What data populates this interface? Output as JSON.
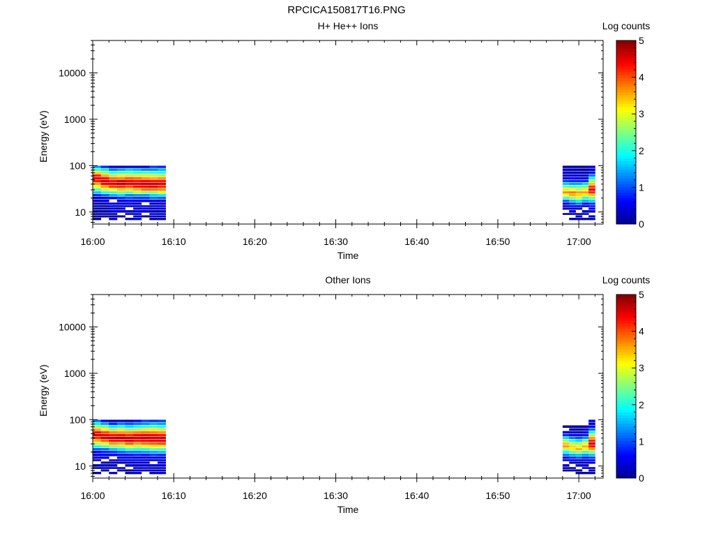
{
  "figure_title": "RPCICA150817T16.PNG",
  "colors": {
    "background": "#ffffff",
    "axis": "#000000",
    "colormap": [
      "#00008f",
      "#0000ff",
      "#0080ff",
      "#00ffff",
      "#80ff80",
      "#ffff00",
      "#ff8000",
      "#ff0000",
      "#800000"
    ]
  },
  "chart_data": [
    {
      "type": "heatmap",
      "title": "H+ He++ Ions",
      "xlabel": "Time",
      "ylabel": "Energy (eV)",
      "x_axis": {
        "type": "time",
        "range": [
          "16:00",
          "17:03"
        ],
        "tick_labels": [
          "16:00",
          "16:10",
          "16:20",
          "16:30",
          "16:40",
          "16:50",
          "17:00"
        ]
      },
      "y_axis": {
        "scale": "log",
        "range": [
          5.5,
          50000
        ],
        "tick_labels": [
          "10",
          "100",
          "1000",
          "10000"
        ],
        "tick_values": [
          10,
          100,
          1000,
          10000
        ]
      },
      "colorbar": {
        "label": "Log counts",
        "range": [
          0,
          5
        ],
        "tick_labels": [
          "0",
          "1",
          "2",
          "3",
          "4",
          "5"
        ]
      },
      "energy_bins": [
        7,
        8,
        9,
        10,
        12,
        13,
        15,
        17,
        20,
        23,
        26,
        30,
        35,
        40,
        46,
        53,
        61,
        70,
        81,
        93
      ],
      "segments": [
        {
          "time_start": "16:00",
          "time_end": "16:09",
          "columns": [
            [
              0,
              0.2,
              0.1,
              0.1,
              0.2,
              0.2,
              0.2,
              0.3,
              0.4,
              0.8,
              1.6,
              2.3,
              3.1,
              3.6,
              4.3,
              4.5,
              4.2,
              3.3,
              2.1,
              1.4
            ],
            [
              null,
              0.1,
              0.2,
              0.1,
              0.2,
              0.1,
              0.3,
              0.4,
              0.5,
              1.1,
              2,
              2.9,
              3.6,
              4.4,
              4.6,
              4.3,
              3.5,
              2.6,
              1.8,
              0.8
            ],
            [
              0.3,
              0.1,
              0.2,
              0.3,
              0.4,
              0.4,
              0.5,
              null,
              0.6,
              1.5,
              2.2,
              3.1,
              4.1,
              4.5,
              4.3,
              3.8,
              2.7,
              2.1,
              1.2,
              0.4
            ],
            [
              null,
              0.2,
              null,
              0.3,
              0.3,
              0.4,
              0.4,
              0.5,
              0.8,
              1.7,
              2.5,
              3.4,
              4.2,
              4.7,
              4.6,
              3.7,
              3,
              2.2,
              1.4,
              0.3
            ],
            [
              0.2,
              null,
              0.2,
              0.3,
              null,
              0.3,
              0.5,
              0.6,
              1,
              1.3,
              2.3,
              3.3,
              4,
              4.5,
              4.4,
              3.9,
              2.8,
              2.3,
              1.6,
              0.5
            ],
            [
              0.4,
              0.3,
              0.3,
              0.4,
              0.3,
              0.3,
              0.4,
              0.5,
              0.9,
              1.4,
              2.8,
              3.5,
              4.3,
              4.5,
              4.3,
              3.8,
              2.9,
              2.1,
              1.5,
              0.5
            ],
            [
              null,
              0.2,
              null,
              0.3,
              0.5,
              0.5,
              null,
              0.6,
              0.9,
              1.4,
              2.6,
              3.8,
              4.4,
              4.6,
              4.4,
              3.6,
              2.9,
              2.2,
              1.3,
              0.3
            ],
            [
              0.1,
              0.3,
              0.4,
              0.2,
              0.3,
              0.4,
              0.3,
              0.3,
              1.2,
              1.7,
              2.6,
              3.8,
              4.5,
              4.6,
              4.3,
              3.5,
              2.8,
              2.1,
              1.3,
              0.9
            ],
            [
              0.3,
              0.2,
              0.3,
              0.2,
              0.4,
              0.4,
              0.4,
              0.3,
              1.1,
              1.8,
              3,
              3.7,
              4.2,
              4.5,
              4.3,
              3.6,
              2.7,
              2,
              1.5,
              0.8
            ]
          ]
        },
        {
          "time_start": "16:58",
          "time_end": "17:02",
          "columns": [
            [
              null,
              null,
              0.1,
              null,
              0.3,
              0.2,
              0.5,
              1.1,
              2.2,
              3.1,
              3.7,
              3.2,
              2.4,
              1.6,
              0.9,
              0.4,
              0.3,
              0.2,
              0.3,
              0.1
            ],
            [
              0.1,
              null,
              0.2,
              0.3,
              0.4,
              0.6,
              0.9,
              1.6,
              2.6,
              3.5,
              3.8,
              3.1,
              2.2,
              1.4,
              0.8,
              0.6,
              0.3,
              0.2,
              0.2,
              0.1
            ],
            [
              0.3,
              0.2,
              0.3,
              null,
              0.4,
              0.5,
              1.2,
              1.8,
              2.9,
              3.3,
              3.6,
              2.8,
              2.3,
              1.4,
              0.8,
              0.5,
              0.3,
              0.3,
              0.2,
              0.1
            ],
            [
              0.2,
              null,
              0.3,
              0.2,
              null,
              0.2,
              0.6,
              1.5,
              2.1,
              3.2,
              3.6,
              3,
              2.4,
              1.7,
              0.8,
              0.4,
              0.3,
              0.2,
              0.1,
              0.1
            ],
            [
              0.3,
              0.3,
              null,
              0.4,
              0.5,
              0.7,
              0.8,
              1.7,
              2.5,
              3.4,
              4.2,
              4.5,
              4.1,
              3.4,
              2.6,
              1.8,
              1.2,
              0.6,
              0.3,
              0.4
            ]
          ]
        }
      ]
    },
    {
      "type": "heatmap",
      "title": "Other Ions",
      "xlabel": "Time",
      "ylabel": "Energy (eV)",
      "x_axis": {
        "type": "time",
        "range": [
          "16:00",
          "17:03"
        ],
        "tick_labels": [
          "16:00",
          "16:10",
          "16:20",
          "16:30",
          "16:40",
          "16:50",
          "17:00"
        ]
      },
      "y_axis": {
        "scale": "log",
        "range": [
          5.5,
          50000
        ],
        "tick_labels": [
          "10",
          "100",
          "1000",
          "10000"
        ],
        "tick_values": [
          10,
          100,
          1000,
          10000
        ]
      },
      "colorbar": {
        "label": "Log counts",
        "range": [
          0,
          5
        ],
        "tick_labels": [
          "0",
          "1",
          "2",
          "3",
          "4",
          "5"
        ]
      },
      "energy_bins": [
        7,
        8,
        9,
        10,
        12,
        13,
        15,
        17,
        20,
        23,
        26,
        30,
        35,
        40,
        46,
        53,
        61,
        70,
        81,
        93
      ],
      "segments": [
        {
          "time_start": "16:00",
          "time_end": "16:09",
          "columns": [
            [
              0.1,
              null,
              0.3,
              0.2,
              null,
              0.3,
              0.4,
              0.4,
              0.6,
              1.1,
              1.9,
              2.8,
              3.5,
              4.2,
              4.6,
              4.3,
              3.5,
              2.6,
              1.8,
              1.2
            ],
            [
              null,
              0.2,
              0.1,
              0.3,
              0.2,
              null,
              0.3,
              0.5,
              0.8,
              1.2,
              2.2,
              3.2,
              3.9,
              4.6,
              4.5,
              4,
              3.1,
              2.4,
              1.4,
              0.6
            ],
            [
              0.3,
              null,
              0.2,
              0.2,
              0.3,
              0.4,
              null,
              0.6,
              0.9,
              1.6,
              2.6,
              3.6,
              4.3,
              4.7,
              4.3,
              3.7,
              2.6,
              1.8,
              0.8,
              0.2
            ],
            [
              null,
              0.2,
              0.3,
              null,
              0.2,
              0.4,
              0.5,
              0.7,
              1.1,
              1.8,
              2.7,
              3.5,
              4.3,
              4.8,
              4.4,
              3.6,
              2.9,
              2,
              1.2,
              0.4
            ],
            [
              0.2,
              0.1,
              null,
              0.3,
              0.3,
              0.4,
              0.6,
              0.7,
              1.3,
              2.2,
              3,
              3.9,
              4.6,
              4.7,
              4.2,
              3.6,
              2.5,
              1.7,
              1,
              0.3
            ],
            [
              0.3,
              0.4,
              0.3,
              0.2,
              0.4,
              0.5,
              0.4,
              0.8,
              1.3,
              2.1,
              2.8,
              3.6,
              4.3,
              4.6,
              4.4,
              3.7,
              2.7,
              1.9,
              1.2,
              0.6
            ],
            [
              null,
              0.2,
              0.4,
              0.3,
              0.4,
              0.4,
              0.5,
              0.7,
              1.4,
              2.1,
              3,
              3.8,
              4.4,
              4.7,
              4.5,
              3.8,
              2.9,
              2.1,
              1.3,
              0.9
            ],
            [
              0.2,
              0.3,
              0.3,
              0.4,
              null,
              0.3,
              0.5,
              0.9,
              1.5,
              2.4,
              3.2,
              3.9,
              4.5,
              4.6,
              4.4,
              3.7,
              3,
              2.2,
              1.5,
              0.8
            ],
            [
              0.4,
              0.3,
              0.3,
              0.4,
              0.3,
              0.4,
              0.6,
              0.8,
              1.6,
              2.3,
              3.1,
              4,
              4.5,
              4.6,
              4.3,
              3.6,
              2.8,
              2,
              1.4,
              0.9
            ]
          ]
        },
        {
          "time_start": "16:58",
          "time_end": "17:02",
          "columns": [
            [
              null,
              0.2,
              0.1,
              0.3,
              null,
              0.4,
              0.6,
              1.2,
              1.9,
              2.8,
              3.6,
              3.4,
              2.6,
              1.7,
              0.8,
              0.4,
              null,
              0.1,
              null,
              null
            ],
            [
              null,
              0.1,
              0.2,
              null,
              0.3,
              0.5,
              0.8,
              1.5,
              2.4,
              3.2,
              3.3,
              2.8,
              2,
              1.2,
              0.5,
              0.3,
              0.2,
              0.1,
              null,
              null
            ],
            [
              0.2,
              0.1,
              null,
              0.3,
              0.2,
              0.4,
              1,
              1.6,
              2.6,
              3.5,
              3.2,
              2.6,
              1.7,
              1,
              0.6,
              0.2,
              0.1,
              0.1,
              null,
              null
            ],
            [
              0.1,
              null,
              0.2,
              0.3,
              0.3,
              0.5,
              0.7,
              1.4,
              2.2,
              3.1,
              3.5,
              3,
              2.3,
              1.3,
              0.7,
              0.4,
              0.3,
              0.1,
              null,
              null
            ],
            [
              0.3,
              0.2,
              0.3,
              null,
              0.4,
              0.6,
              0.9,
              1.6,
              2.6,
              3.6,
              4.3,
              4.6,
              4.2,
              3.6,
              2.7,
              1.9,
              1.1,
              0.6,
              0.3,
              0.4
            ]
          ]
        }
      ]
    }
  ]
}
